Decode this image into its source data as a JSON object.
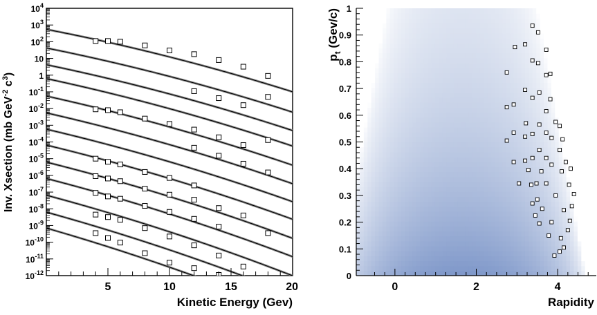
{
  "chart_data": [
    {
      "type": "scatter",
      "xlabel": "Kinetic Energy (Gev)",
      "ylabel_main": "Inv. Xsection  (mb GeV",
      "ylabel_sup1": "-2",
      "ylabel_mid": " c",
      "ylabel_sup2": "3",
      "ylabel_end": ")",
      "xlim": [
        0,
        20
      ],
      "ylim": [
        1e-12,
        10000.0
      ],
      "yscale": "log",
      "grid": false,
      "x_ticks": [
        "5",
        "10",
        "15",
        "20"
      ],
      "y_ticks": [
        {
          "base": "10",
          "exp": "-12"
        },
        {
          "base": "10",
          "exp": "-11"
        },
        {
          "base": "10",
          "exp": "-10"
        },
        {
          "base": "10",
          "exp": "-9"
        },
        {
          "base": "10",
          "exp": "-8"
        },
        {
          "base": "10",
          "exp": "-7"
        },
        {
          "base": "10",
          "exp": "-6"
        },
        {
          "base": "10",
          "exp": "-5"
        },
        {
          "base": "10",
          "exp": "-4"
        },
        {
          "base": "10",
          "exp": "-3"
        },
        {
          "base": "10",
          "exp": "-2"
        },
        {
          "base": "10",
          "exp": "-1"
        },
        {
          "base": "1",
          "exp": ""
        },
        {
          "base": "10",
          "exp": ""
        },
        {
          "base": "10",
          "exp": "2"
        },
        {
          "base": "10",
          "exp": "3"
        },
        {
          "base": "10",
          "exp": "4"
        }
      ],
      "curves": [
        {
          "y0": 550,
          "slope": 0.143
        },
        {
          "y0": 42,
          "slope": 0.148
        },
        {
          "y0": 4.2,
          "slope": 0.153
        },
        {
          "y0": 0.62,
          "slope": 0.158
        },
        {
          "y0": 0.056,
          "slope": 0.163
        },
        {
          "y0": 0.0055,
          "slope": 0.168
        },
        {
          "y0": 0.00058,
          "slope": 0.173
        },
        {
          "y0": 6.5e-05,
          "slope": 0.178
        },
        {
          "y0": 6.2e-06,
          "slope": 0.184
        },
        {
          "y0": 6.5e-07,
          "slope": 0.19
        },
        {
          "y0": 6.5e-08,
          "slope": 0.197
        },
        {
          "y0": 6.3e-09,
          "slope": 0.204
        },
        {
          "y0": 7e-10,
          "slope": 0.212
        }
      ],
      "points": [
        {
          "x": 4,
          "y": 110
        },
        {
          "x": 5,
          "y": 110
        },
        {
          "x": 6,
          "y": 100
        },
        {
          "x": 8,
          "y": 60
        },
        {
          "x": 10,
          "y": 30
        },
        {
          "x": 12,
          "y": 18
        },
        {
          "x": 14,
          "y": 8
        },
        {
          "x": 16,
          "y": 3.2
        },
        {
          "x": 18,
          "y": 0.9
        },
        {
          "x": 12,
          "y": 0.11
        },
        {
          "x": 14,
          "y": 0.042
        },
        {
          "x": 16,
          "y": 0.016
        },
        {
          "x": 18,
          "y": 0.05
        },
        {
          "x": 4,
          "y": 0.009
        },
        {
          "x": 5,
          "y": 0.008
        },
        {
          "x": 6,
          "y": 0.006
        },
        {
          "x": 8,
          "y": 0.0025
        },
        {
          "x": 10,
          "y": 0.0012
        },
        {
          "x": 12,
          "y": 0.00055
        },
        {
          "x": 14,
          "y": 0.00019
        },
        {
          "x": 16,
          "y": 6.5e-05
        },
        {
          "x": 18,
          "y": 0.00013
        },
        {
          "x": 12,
          "y": 4.5e-05
        },
        {
          "x": 14,
          "y": 1.5e-05
        },
        {
          "x": 16,
          "y": 5e-06
        },
        {
          "x": 18,
          "y": 1.5e-06
        },
        {
          "x": 4,
          "y": 1e-05
        },
        {
          "x": 5,
          "y": 6.5e-06
        },
        {
          "x": 6,
          "y": 4.5e-06
        },
        {
          "x": 8,
          "y": 1.6e-06
        },
        {
          "x": 10,
          "y": 7e-07
        },
        {
          "x": 12,
          "y": 2.5e-07
        },
        {
          "x": 4,
          "y": 9e-07
        },
        {
          "x": 5,
          "y": 6.5e-07
        },
        {
          "x": 6,
          "y": 4.5e-07
        },
        {
          "x": 8,
          "y": 1.6e-07
        },
        {
          "x": 10,
          "y": 7e-08
        },
        {
          "x": 12,
          "y": 3.5e-08
        },
        {
          "x": 14,
          "y": 1.1e-08
        },
        {
          "x": 16,
          "y": 4e-09
        },
        {
          "x": 18,
          "y": 3.5e-10
        },
        {
          "x": 4,
          "y": 9e-08
        },
        {
          "x": 5,
          "y": 5.5e-08
        },
        {
          "x": 6,
          "y": 4e-08
        },
        {
          "x": 8,
          "y": 1.5e-08
        },
        {
          "x": 10,
          "y": 6.5e-09
        },
        {
          "x": 12,
          "y": 2.5e-09
        },
        {
          "x": 14,
          "y": 8.5e-10
        },
        {
          "x": 4,
          "y": 4.5e-09
        },
        {
          "x": 5,
          "y": 3.2e-09
        },
        {
          "x": 6,
          "y": 2.2e-09
        },
        {
          "x": 8,
          "y": 7e-10
        },
        {
          "x": 10,
          "y": 2.2e-10
        },
        {
          "x": 12,
          "y": 6.5e-11
        },
        {
          "x": 14,
          "y": 1.6e-11
        },
        {
          "x": 4,
          "y": 3.5e-10
        },
        {
          "x": 5,
          "y": 1.8e-10
        },
        {
          "x": 6,
          "y": 9.5e-11
        },
        {
          "x": 8,
          "y": 2.2e-11
        },
        {
          "x": 10,
          "y": 6e-12
        },
        {
          "x": 12,
          "y": 2.8e-12
        },
        {
          "x": 14,
          "y": 1.1e-12
        },
        {
          "x": 16,
          "y": 3.5e-12
        }
      ]
    },
    {
      "type": "heatmap",
      "xlabel": "Rapidity",
      "ylabel_main": "p",
      "ylabel_sub": "t",
      "ylabel_end": " (Gev/c)",
      "xlim": [
        -0.95,
        4.95
      ],
      "ylim": [
        0,
        1
      ],
      "grid": false,
      "x_ticks": [
        {
          "value": 0,
          "label": "0"
        },
        {
          "value": 2,
          "label": "2"
        },
        {
          "value": 4,
          "label": "4"
        }
      ],
      "y_ticks": [
        {
          "value": 0,
          "label": "0"
        },
        {
          "value": 0.1,
          "label": "0.1"
        },
        {
          "value": 0.2,
          "label": "0.2"
        },
        {
          "value": 0.3,
          "label": "0.3"
        },
        {
          "value": 0.4,
          "label": "0.4"
        },
        {
          "value": 0.5,
          "label": "0.5"
        },
        {
          "value": 0.6,
          "label": "0.6"
        },
        {
          "value": 0.7,
          "label": "0.7"
        },
        {
          "value": 0.8,
          "label": "0.8"
        },
        {
          "value": 0.9,
          "label": "0.9"
        },
        {
          "value": 1,
          "label": "1"
        }
      ],
      "colors": {
        "high": "#7e97c9",
        "low": "#ffffff"
      },
      "points": [
        {
          "x": 3.38,
          "y": 0.935
        },
        {
          "x": 3.52,
          "y": 0.91
        },
        {
          "x": 3.2,
          "y": 0.865
        },
        {
          "x": 2.95,
          "y": 0.855
        },
        {
          "x": 3.72,
          "y": 0.845
        },
        {
          "x": 3.38,
          "y": 0.805
        },
        {
          "x": 3.52,
          "y": 0.795
        },
        {
          "x": 2.75,
          "y": 0.76
        },
        {
          "x": 3.82,
          "y": 0.755
        },
        {
          "x": 3.72,
          "y": 0.75
        },
        {
          "x": 3.2,
          "y": 0.695
        },
        {
          "x": 3.55,
          "y": 0.685
        },
        {
          "x": 2.92,
          "y": 0.64
        },
        {
          "x": 2.75,
          "y": 0.63
        },
        {
          "x": 3.38,
          "y": 0.665
        },
        {
          "x": 3.82,
          "y": 0.66
        },
        {
          "x": 3.72,
          "y": 0.615
        },
        {
          "x": 3.22,
          "y": 0.57
        },
        {
          "x": 3.55,
          "y": 0.565
        },
        {
          "x": 3.95,
          "y": 0.575
        },
        {
          "x": 4.05,
          "y": 0.56
        },
        {
          "x": 2.92,
          "y": 0.535
        },
        {
          "x": 3.38,
          "y": 0.53
        },
        {
          "x": 3.72,
          "y": 0.535
        },
        {
          "x": 2.75,
          "y": 0.505
        },
        {
          "x": 3.2,
          "y": 0.52
        },
        {
          "x": 3.85,
          "y": 0.515
        },
        {
          "x": 4.12,
          "y": 0.51
        },
        {
          "x": 3.55,
          "y": 0.47
        },
        {
          "x": 4.05,
          "y": 0.47
        },
        {
          "x": 3.38,
          "y": 0.44
        },
        {
          "x": 3.72,
          "y": 0.44
        },
        {
          "x": 2.92,
          "y": 0.425
        },
        {
          "x": 3.2,
          "y": 0.43
        },
        {
          "x": 4.2,
          "y": 0.425
        },
        {
          "x": 3.85,
          "y": 0.415
        },
        {
          "x": 4.32,
          "y": 0.4
        },
        {
          "x": 3.28,
          "y": 0.395
        },
        {
          "x": 3.6,
          "y": 0.39
        },
        {
          "x": 4.1,
          "y": 0.39
        },
        {
          "x": 3.05,
          "y": 0.345
        },
        {
          "x": 3.35,
          "y": 0.34
        },
        {
          "x": 3.48,
          "y": 0.345
        },
        {
          "x": 3.72,
          "y": 0.345
        },
        {
          "x": 4.28,
          "y": 0.34
        },
        {
          "x": 4.4,
          "y": 0.305
        },
        {
          "x": 3.95,
          "y": 0.3
        },
        {
          "x": 3.5,
          "y": 0.285
        },
        {
          "x": 3.38,
          "y": 0.27
        },
        {
          "x": 4.35,
          "y": 0.26
        },
        {
          "x": 3.62,
          "y": 0.25
        },
        {
          "x": 4.15,
          "y": 0.245
        },
        {
          "x": 3.45,
          "y": 0.225
        },
        {
          "x": 4.3,
          "y": 0.205
        },
        {
          "x": 3.85,
          "y": 0.2
        },
        {
          "x": 3.55,
          "y": 0.195
        },
        {
          "x": 4.25,
          "y": 0.17
        },
        {
          "x": 3.78,
          "y": 0.15
        },
        {
          "x": 4.08,
          "y": 0.14
        },
        {
          "x": 3.92,
          "y": 0.075
        },
        {
          "x": 4.05,
          "y": 0.09
        },
        {
          "x": 4.15,
          "y": 0.105
        }
      ]
    }
  ]
}
